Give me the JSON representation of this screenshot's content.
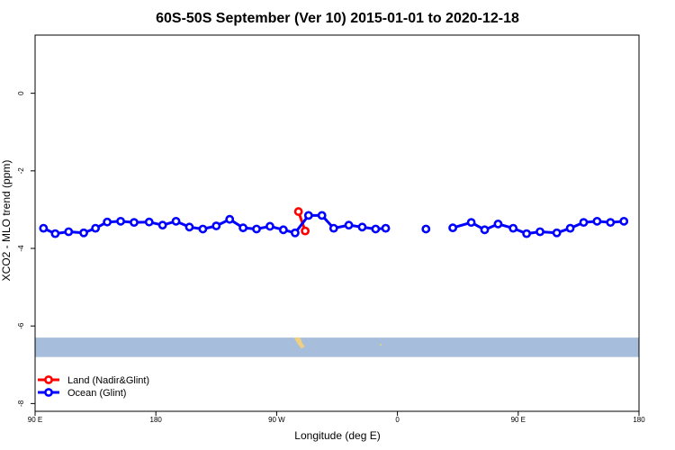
{
  "chart_data": {
    "type": "line",
    "title": "60S-50S September (Ver 10)   2015-01-01 to 2020-12-18",
    "xlabel": "Longitude (deg E)",
    "ylabel": "XCO2 - MLO trend (ppm)",
    "xlim": [
      90,
      270
    ],
    "ylim": [
      -8.2,
      1.5
    ],
    "x_ticks": [
      {
        "value": 90,
        "label": "90 E"
      },
      {
        "value": 126,
        "label": "180"
      },
      {
        "value": 162,
        "label": "90 W"
      },
      {
        "value": 198,
        "label": "0"
      },
      {
        "value": 234,
        "label": "90 E"
      },
      {
        "value": 270,
        "label": "180"
      }
    ],
    "y_ticks": [
      {
        "value": 0,
        "label": "0"
      },
      {
        "value": -2,
        "label": "-2"
      },
      {
        "value": -4,
        "label": "-4"
      },
      {
        "value": -6,
        "label": "-6"
      },
      {
        "value": -8,
        "label": "-8"
      }
    ],
    "series": [
      {
        "name": "Land (Nadir&Glint)",
        "color": "#ff0000",
        "points": [
          [
            168.5,
            -3.05
          ],
          [
            170.5,
            -3.55
          ]
        ]
      },
      {
        "name": "Ocean (Glint)",
        "color": "#0000ff",
        "points": [
          [
            92.5,
            -3.48
          ],
          [
            96,
            -3.62
          ],
          [
            100,
            -3.57
          ],
          [
            104.5,
            -3.6
          ],
          [
            108,
            -3.48
          ],
          [
            111.5,
            -3.32
          ],
          [
            115.5,
            -3.3
          ],
          [
            119.5,
            -3.33
          ],
          [
            124,
            -3.32
          ],
          [
            128,
            -3.4
          ],
          [
            132,
            -3.3
          ],
          [
            136,
            -3.45
          ],
          [
            140,
            -3.5
          ],
          [
            144,
            -3.42
          ],
          [
            148,
            -3.25
          ],
          [
            152,
            -3.47
          ],
          [
            156,
            -3.5
          ],
          [
            160,
            -3.43
          ],
          [
            164,
            -3.52
          ],
          [
            167.5,
            -3.6
          ],
          [
            171.5,
            -3.15
          ],
          [
            175.5,
            -3.15
          ],
          [
            179,
            -3.48
          ],
          [
            183.5,
            -3.4
          ],
          [
            187.5,
            -3.45
          ],
          [
            191.5,
            -3.5
          ],
          [
            194.5,
            -3.48
          ],
          null,
          [
            206.5,
            -3.5
          ],
          null,
          [
            214.5,
            -3.47
          ],
          [
            220,
            -3.33
          ],
          [
            224,
            -3.52
          ],
          [
            228,
            -3.37
          ],
          [
            232.5,
            -3.48
          ],
          [
            236.5,
            -3.62
          ],
          [
            240.5,
            -3.57
          ],
          [
            245.5,
            -3.6
          ],
          [
            249.5,
            -3.48
          ],
          [
            253.5,
            -3.33
          ],
          [
            257.5,
            -3.3
          ],
          [
            261.5,
            -3.33
          ],
          [
            265.5,
            -3.3
          ]
        ]
      }
    ],
    "land_band": {
      "y_top": -6.3,
      "y_bottom": -6.8,
      "color": "#a6bddb"
    },
    "land_feature_color": "#f0d080",
    "legend": {
      "placement": "bottom-left"
    },
    "grid": false
  }
}
